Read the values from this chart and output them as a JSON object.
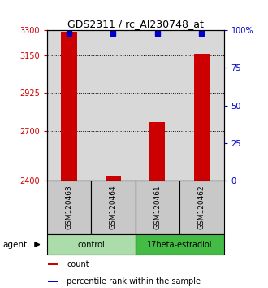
{
  "title": "GDS2311 / rc_AI230748_at",
  "samples": [
    "GSM120463",
    "GSM120464",
    "GSM120461",
    "GSM120462"
  ],
  "counts": [
    3290,
    2430,
    2750,
    3160
  ],
  "percentiles": [
    99,
    99,
    99,
    99
  ],
  "ylim_left": [
    2400,
    3300
  ],
  "yticks_left": [
    2400,
    2700,
    2925,
    3150,
    3300
  ],
  "yticks_right": [
    0,
    25,
    50,
    75,
    100
  ],
  "bar_color": "#CC0000",
  "dot_color": "#0000CC",
  "bg_plot": "#D8D8D8",
  "bg_group_control": "#AADDAA",
  "bg_group_estradiol": "#44BB44",
  "left_axis_color": "#CC0000",
  "right_axis_color": "#0000CC",
  "agent_label": "agent",
  "legend_count": "count",
  "legend_percentile": "percentile rank within the sample",
  "grid_lines": [
    3150,
    2925,
    2700,
    2400
  ],
  "group_spans": [
    [
      0,
      2,
      "control"
    ],
    [
      2,
      4,
      "17beta-estradiol"
    ]
  ]
}
